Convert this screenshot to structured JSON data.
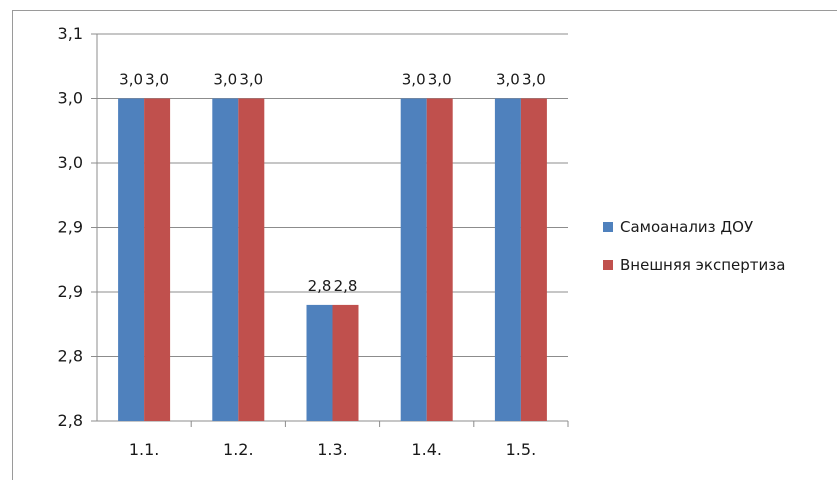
{
  "chart_data": {
    "type": "bar",
    "title": "",
    "categories": [
      "1.1.",
      "1.2.",
      "1.3.",
      "1.4.",
      "1.5."
    ],
    "series": [
      {
        "name": "Самоанализ ДОУ",
        "color": "#4f81bd",
        "values": [
          3.0,
          3.0,
          2.84,
          3.0,
          3.0
        ],
        "value_labels": [
          "3,0",
          "3,0",
          "2,8",
          "3,0",
          "3,0"
        ]
      },
      {
        "name": "Внешняя экспертиза",
        "color": "#c0504d",
        "values": [
          3.0,
          3.0,
          2.84,
          3.0,
          3.0
        ],
        "value_labels": [
          "3,0",
          "3,0",
          "2,8",
          "3,0",
          "3,0"
        ]
      }
    ],
    "ylim": [
      2.75,
      3.05
    ],
    "yticks": [
      2.75,
      2.8,
      2.85,
      2.9,
      2.95,
      3.0,
      3.05
    ],
    "ytick_labels": [
      "2,8",
      "2,8",
      "2,9",
      "2,9",
      "3,0",
      "3,0",
      "3,1"
    ],
    "xlabel": "",
    "ylabel": "",
    "grid": true,
    "legend_position": "right"
  }
}
